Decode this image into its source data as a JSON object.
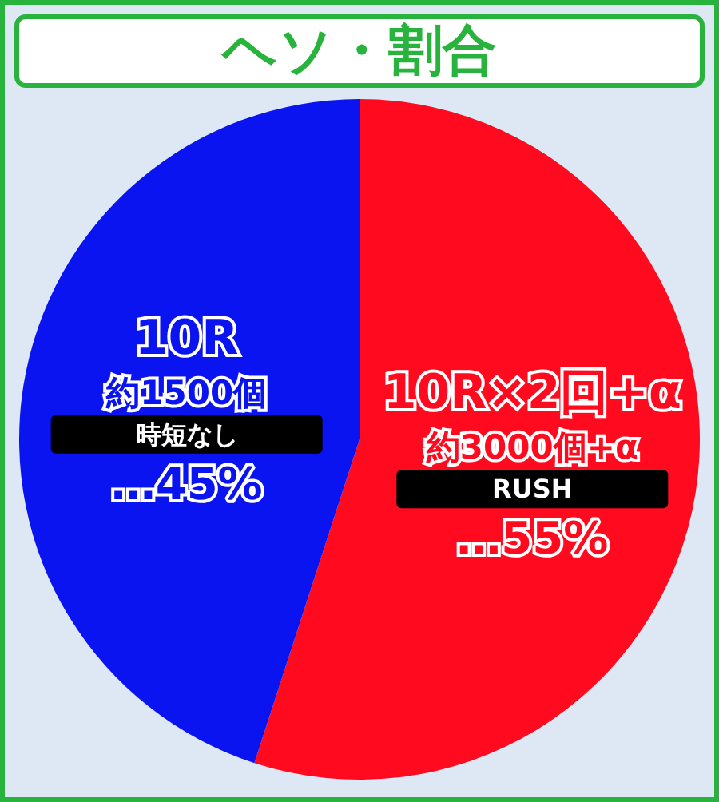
{
  "chart_data": {
    "type": "pie",
    "title": "ヘソ・割合",
    "categories": [
      "RUSH",
      "時短なし"
    ],
    "values": [
      55,
      45
    ],
    "colors": [
      "#ff0a1e",
      "#0a14f0"
    ],
    "value_labels": [
      "…55%",
      "…45%"
    ],
    "annotations": [
      "10R×2回+α",
      "約3000個+α",
      "10R",
      "約1500個"
    ],
    "legend": false
  }
}
